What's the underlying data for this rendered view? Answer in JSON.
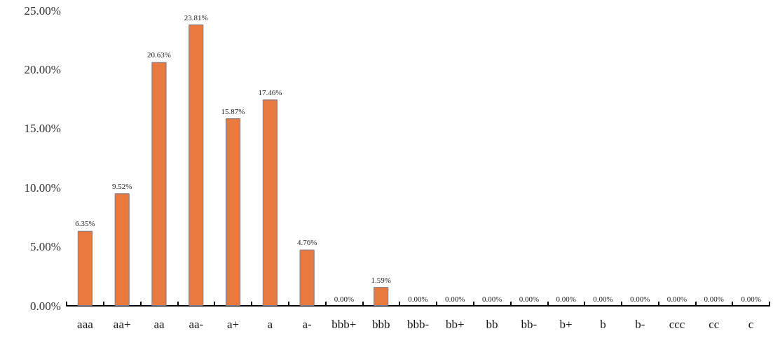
{
  "chart_data": {
    "type": "bar",
    "categories": [
      "aaa",
      "aa+",
      "aa",
      "aa-",
      "a+",
      "a",
      "a-",
      "bbb+",
      "bbb",
      "bbb-",
      "bb+",
      "bb",
      "bb-",
      "b+",
      "b",
      "b-",
      "ccc",
      "cc",
      "c"
    ],
    "values": [
      6.35,
      9.52,
      20.63,
      23.81,
      15.87,
      17.46,
      4.76,
      0,
      1.59,
      0,
      0,
      0,
      0,
      0,
      0,
      0,
      0,
      0,
      0
    ],
    "value_labels": [
      "6.35%",
      "9.52%",
      "20.63%",
      "23.81%",
      "15.87%",
      "17.46%",
      "4.76%",
      "0.00%",
      "1.59%",
      "0.00%",
      "0.00%",
      "0.00%",
      "0.00%",
      "0.00%",
      "0.00%",
      "0.00%",
      "0.00%",
      "0.00%",
      "0.00%"
    ],
    "color": "#e8793f",
    "ylim": [
      0,
      25
    ],
    "yticks": [
      {
        "value": 0,
        "label": "0.00%"
      },
      {
        "value": 5,
        "label": "5.00%"
      },
      {
        "value": 10,
        "label": "10.00%"
      },
      {
        "value": 15,
        "label": "15.00%"
      },
      {
        "value": 20,
        "label": "20.00%"
      },
      {
        "value": 25,
        "label": "25.00%"
      }
    ],
    "grid": false
  }
}
